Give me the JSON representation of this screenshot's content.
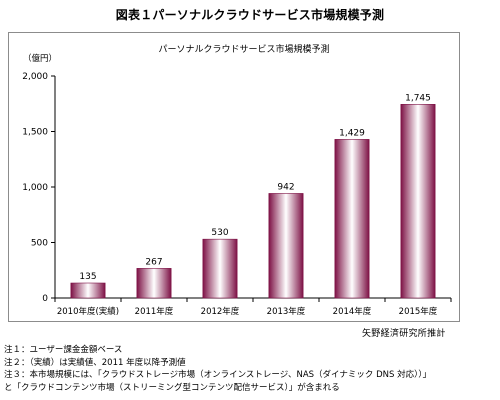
{
  "figure_title": "図表１パーソナルクラウドサービス市場規模予測",
  "source": "矢野経済研究所推計",
  "notes": [
    "注１：ユーザー課金金額ベース",
    "注２：（実績）は実績値、2011 年度以降予測値",
    "注３：本市場規模には、「クラウドストレージ市場（オンラインストレージ、NAS（ダイナミック DNS 対応））」",
    "と「クラウドコンテンツ市場（ストリーミング型コンテンツ配信サービス）」が含まれる"
  ],
  "colors": {
    "bar_edge": "#7d1145",
    "bar_mid": "#ffffff",
    "axis": "#000000",
    "frame": "#8c8c8c"
  },
  "chart_data": {
    "type": "bar",
    "title": "パーソナルクラウドサービス市場規模予測",
    "unit_label": "（億円）",
    "categories": [
      "2010年度(実績)",
      "2011年度",
      "2012年度",
      "2013年度",
      "2014年度",
      "2015年度"
    ],
    "values": [
      135,
      267,
      530,
      942,
      1429,
      1745
    ],
    "value_labels": [
      "135",
      "267",
      "530",
      "942",
      "1,429",
      "1,745"
    ],
    "ylim": [
      0,
      2000
    ],
    "yticks": [
      0,
      500,
      1000,
      1500,
      2000
    ],
    "ytick_labels": [
      "0",
      "500",
      "1,000",
      "1,500",
      "2,000"
    ],
    "grid": false,
    "legend": "none"
  }
}
